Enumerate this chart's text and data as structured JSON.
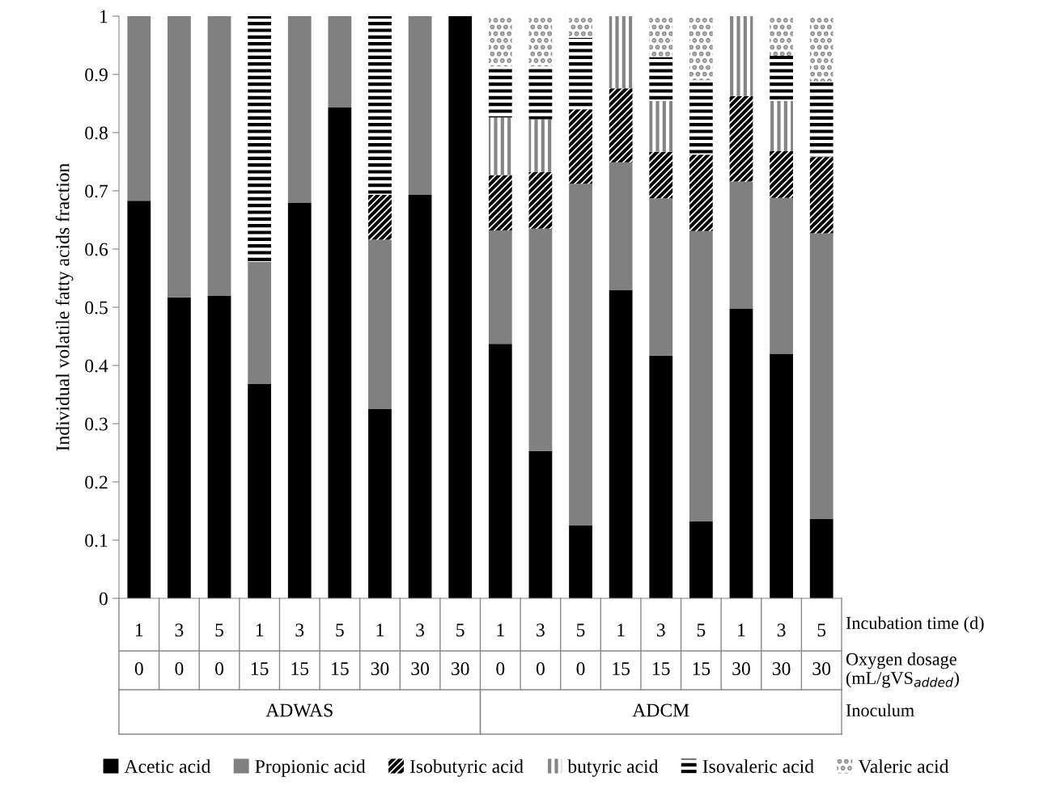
{
  "chart_data": {
    "type": "bar",
    "stacked": true,
    "ylabel": "Individual volatile fatty acids fraction",
    "categories": [
      "1",
      "3",
      "5",
      "1",
      "3",
      "5",
      "1",
      "3",
      "5",
      "1",
      "3",
      "5",
      "1",
      "3",
      "5",
      "1",
      "3",
      "5"
    ],
    "series": [
      {
        "name": "Acetic acid",
        "color": "#000000",
        "values": [
          0.683,
          0.517,
          0.52,
          0.368,
          0.68,
          0.843,
          0.325,
          0.693,
          1.0,
          0.437,
          0.253,
          0.125,
          0.53,
          0.417,
          0.132,
          0.498,
          0.42,
          0.136
        ]
      },
      {
        "name": "Propionic acid",
        "color": "#808080",
        "values": [
          0.317,
          0.483,
          0.48,
          0.21,
          0.32,
          0.157,
          0.291,
          0.307,
          0,
          0.195,
          0.382,
          0.587,
          0.219,
          0.27,
          0.499,
          0.218,
          0.268,
          0.491
        ]
      },
      {
        "name": "Isobutyric acid",
        "color": "#000001",
        "values": [
          0,
          0,
          0,
          0,
          0,
          0,
          0.077,
          0,
          0,
          0.095,
          0.097,
          0.128,
          0.127,
          0.08,
          0.131,
          0.147,
          0.08,
          0.131
        ]
      },
      {
        "name": "butyric acid",
        "color": "#858585",
        "values": [
          0,
          0,
          0,
          0,
          0,
          0,
          0,
          0,
          0,
          0.099,
          0.091,
          0,
          0.124,
          0.087,
          0,
          0.137,
          0.087,
          0
        ]
      },
      {
        "name": "Isovaleric acid",
        "color": "#010101",
        "values": [
          0,
          0,
          0,
          0.422,
          0,
          0,
          0.307,
          0,
          0,
          0.088,
          0.091,
          0.123,
          0,
          0.076,
          0.128,
          0,
          0.077,
          0.13
        ]
      },
      {
        "name": "Valeric acid",
        "color": "#8a8a8a",
        "values": [
          0,
          0,
          0,
          0,
          0,
          0,
          0,
          0,
          0,
          0.086,
          0.086,
          0.037,
          0,
          0.07,
          0.11,
          0,
          0.069,
          0.112
        ]
      }
    ],
    "ylim": [
      0,
      1
    ],
    "yticks": [
      0,
      0.1,
      0.2,
      0.3,
      0.4,
      0.5,
      0.6,
      0.7,
      0.8,
      0.9,
      1
    ],
    "grid": false,
    "legend": "bottom",
    "annotations": [
      "0",
      "0",
      "0",
      "15",
      "15",
      "15",
      "30",
      "30",
      "30",
      "0",
      "0",
      "0",
      "15",
      "15",
      "15",
      "30",
      "30",
      "30",
      "ADWAS",
      "ADCM",
      "Incubation time (d)",
      "Oxygen dosage\n(mL/gVS$_{added}$)",
      "Inoculum"
    ]
  }
}
